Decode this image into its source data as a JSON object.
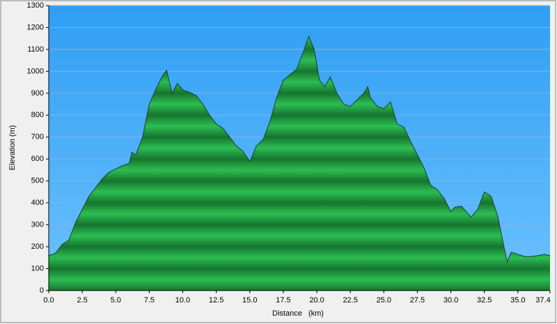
{
  "chart_data": {
    "type": "area",
    "x_label": "Distance   (km)",
    "y_label": "Elevation (m)",
    "x": [
      0,
      0.5,
      1,
      1.5,
      2,
      2.5,
      3,
      3.5,
      4,
      4.5,
      5,
      5.5,
      6,
      6.2,
      6.5,
      7,
      7.5,
      8,
      8.5,
      8.8,
      9.2,
      9.6,
      10,
      10.5,
      11,
      11.5,
      12,
      12.5,
      13,
      13.5,
      14,
      14.5,
      15,
      15.5,
      16,
      16.5,
      17,
      17.5,
      18,
      18.5,
      19,
      19.4,
      19.8,
      20.2,
      20.6,
      21,
      21.5,
      22,
      22.5,
      23,
      23.5,
      23.8,
      24,
      24.5,
      25,
      25.5,
      26,
      26.5,
      27,
      27.5,
      28,
      28.5,
      29,
      29.5,
      30,
      30.3,
      30.8,
      31.5,
      32,
      32.5,
      33,
      33.5,
      34,
      34.2,
      34.5,
      35,
      35.5,
      36,
      36.5,
      37,
      37.4
    ],
    "values": [
      160,
      170,
      210,
      230,
      310,
      370,
      430,
      470,
      510,
      540,
      555,
      570,
      580,
      630,
      620,
      700,
      850,
      920,
      980,
      1005,
      900,
      945,
      915,
      905,
      890,
      850,
      800,
      760,
      740,
      700,
      660,
      635,
      590,
      660,
      690,
      770,
      880,
      960,
      985,
      1010,
      1090,
      1160,
      1100,
      960,
      930,
      975,
      900,
      850,
      840,
      870,
      900,
      930,
      880,
      840,
      830,
      860,
      760,
      745,
      680,
      620,
      560,
      480,
      460,
      420,
      360,
      380,
      385,
      335,
      370,
      450,
      430,
      340,
      190,
      130,
      175,
      165,
      155,
      155,
      160,
      165,
      160
    ],
    "color": "#22a845",
    "xlim": [
      0,
      37.4
    ],
    "xticks": [
      {
        "value": 0,
        "label": "0.0"
      },
      2.5,
      {
        "value": 5,
        "label": "5.0"
      },
      7.5,
      {
        "value": 10,
        "label": "10.0"
      },
      12.5,
      {
        "value": 15,
        "label": "15.0"
      },
      17.5,
      {
        "value": 20,
        "label": "20.0"
      },
      22.5,
      {
        "value": 25,
        "label": "25.0"
      },
      27.5,
      {
        "value": 30,
        "label": "30.0"
      },
      32.5,
      {
        "value": 35,
        "label": "35.0"
      },
      37.4
    ],
    "ylim": [
      0,
      1300
    ],
    "yticks": [
      0,
      100,
      200,
      300,
      400,
      500,
      600,
      700,
      800,
      900,
      1000,
      1100,
      1200,
      1300
    ],
    "grid": true
  }
}
